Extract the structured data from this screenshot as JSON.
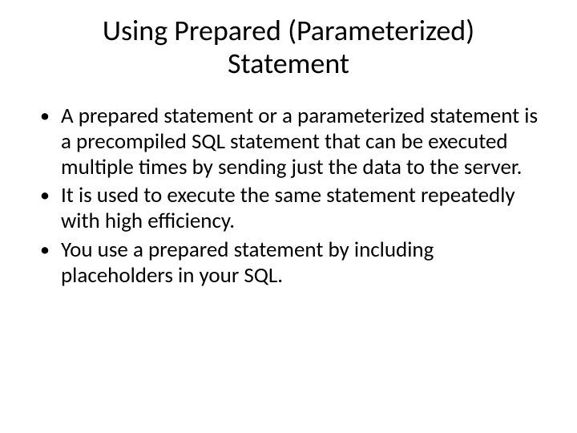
{
  "title_line1": "Using Prepared (Parameterized)",
  "title_line2": "Statement",
  "bullets": [
    "A prepared statement or a parameterized statement is a precompiled SQL statement that can be executed multiple times by sending just the data to the server.",
    "It is used to execute the same statement repeatedly with high efficiency.",
    "You use a prepared statement by including placeholders in your SQL."
  ],
  "colors": {
    "background": "#ffffff",
    "text": "#000000"
  },
  "fonts": {
    "family": "Calibri",
    "title_size_pt": 36,
    "body_size_pt": 27
  }
}
